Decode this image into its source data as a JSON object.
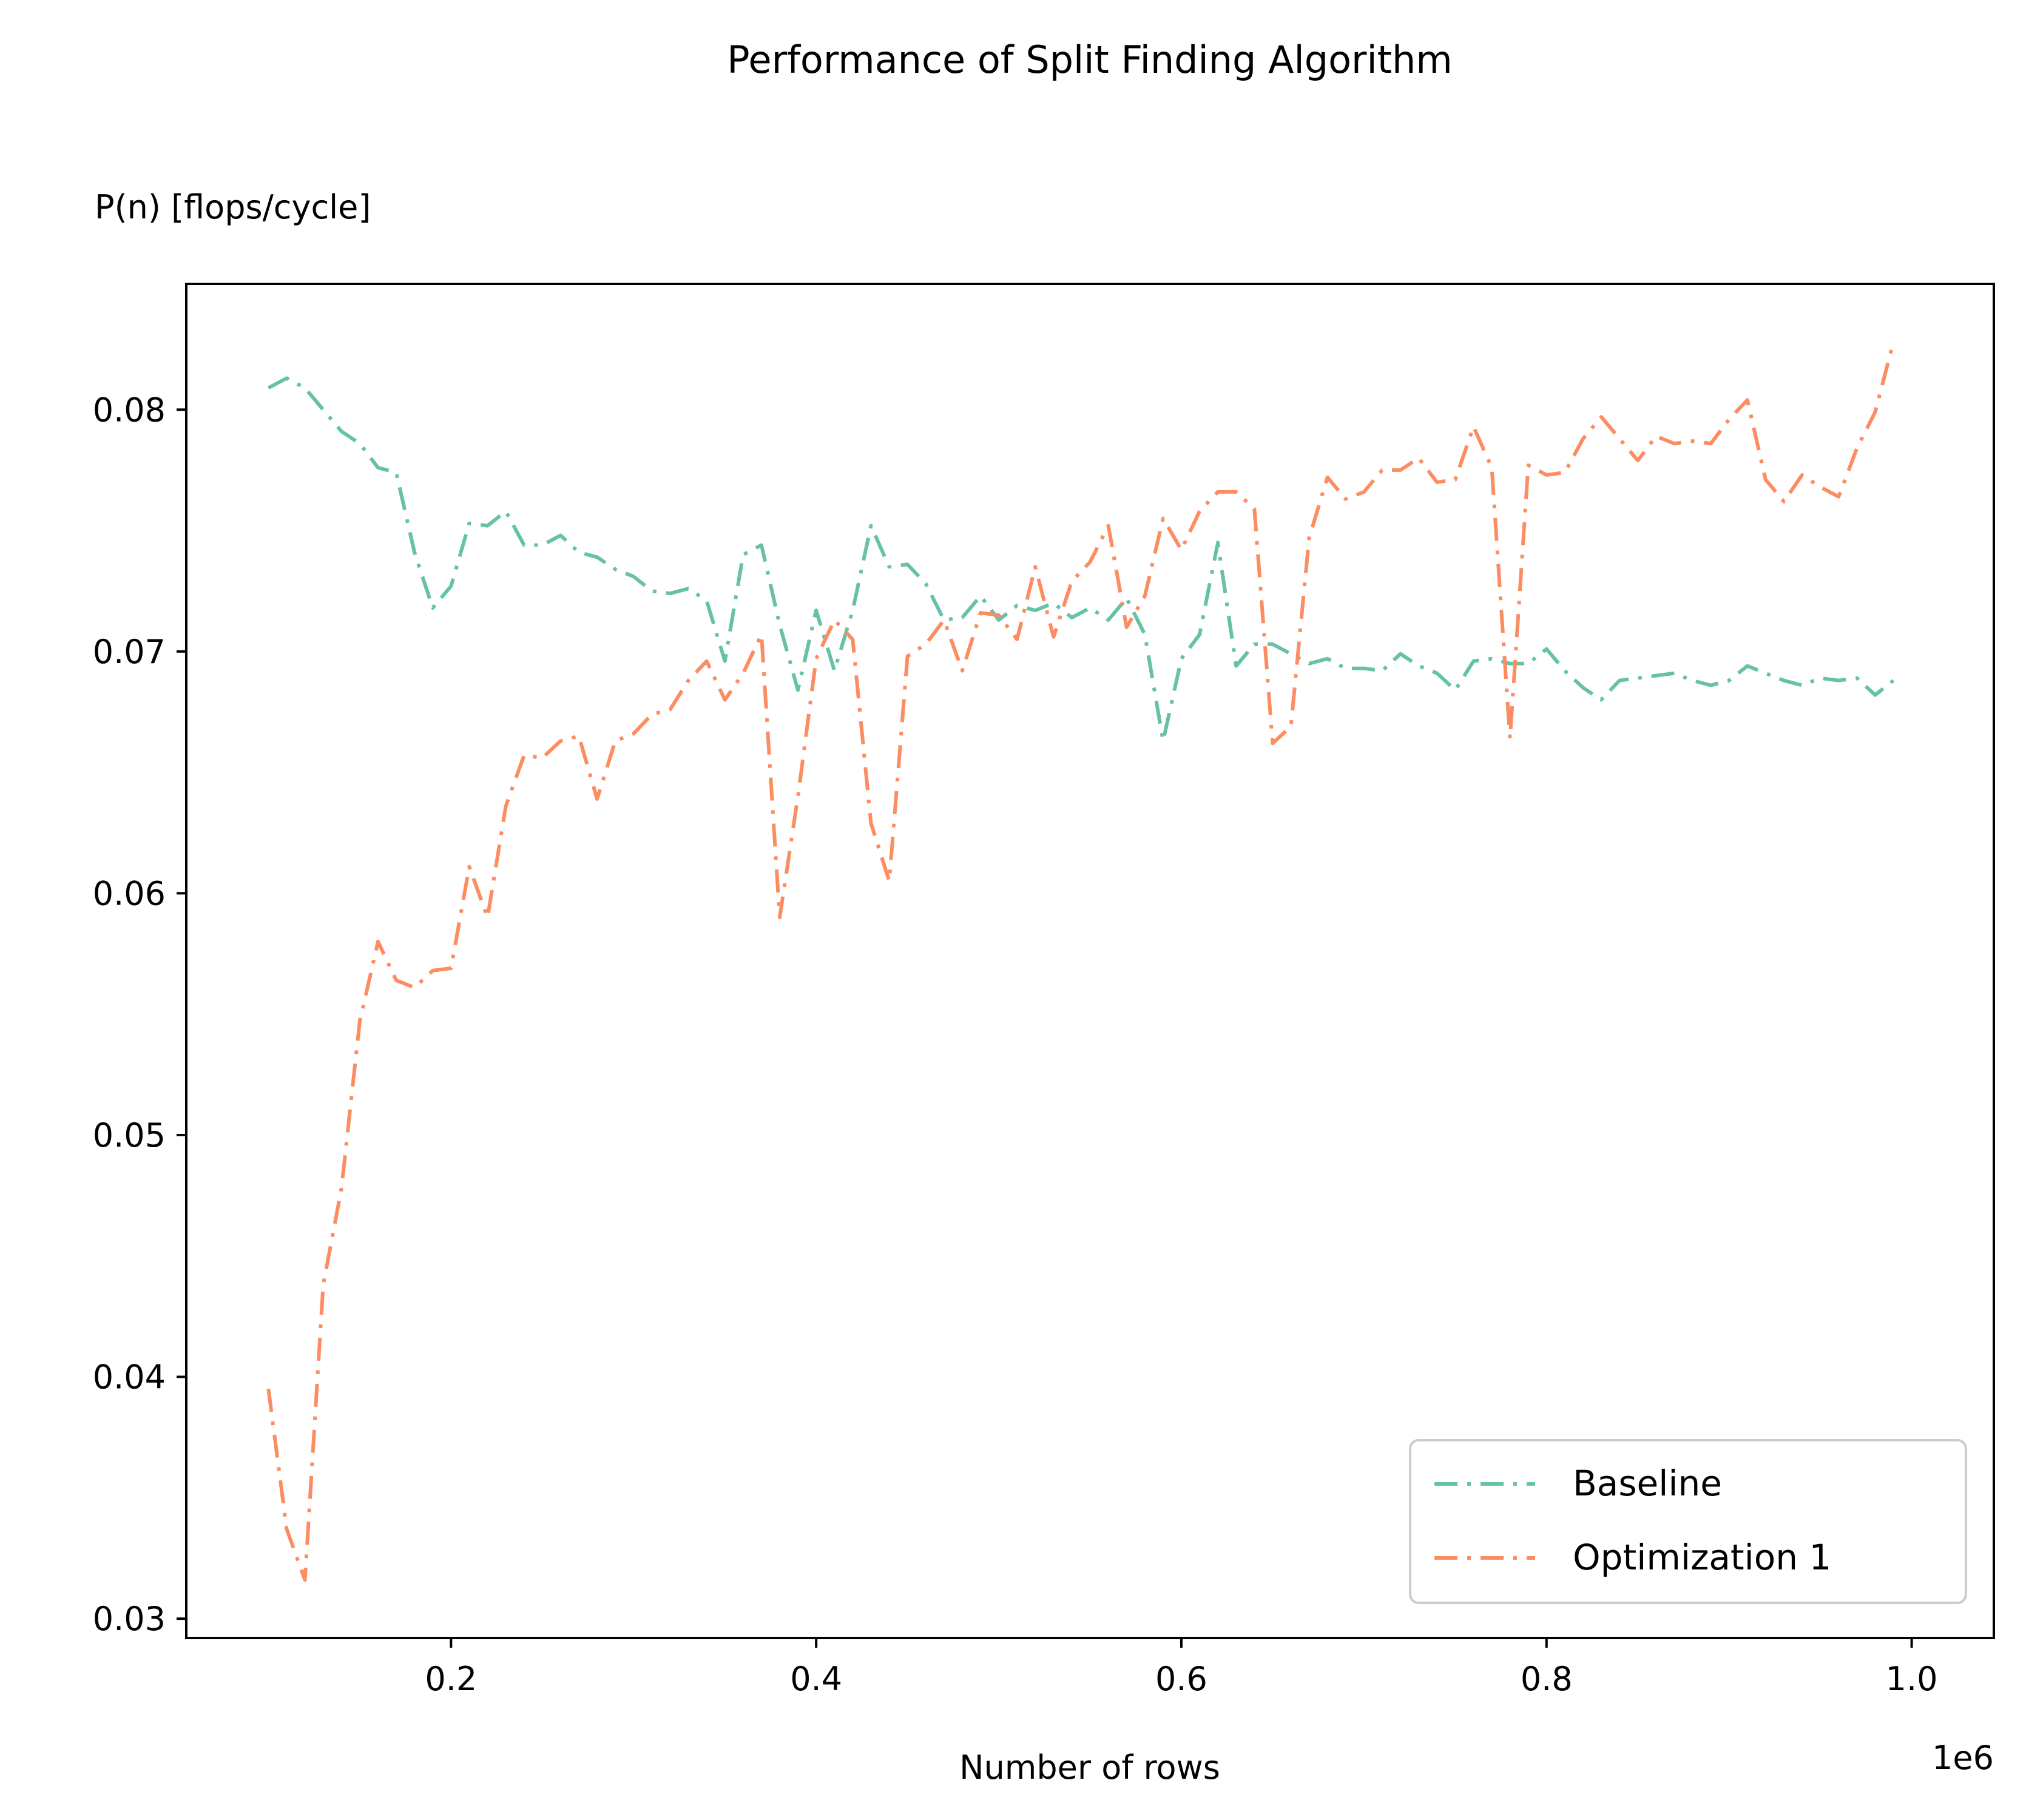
{
  "chart_data": {
    "type": "line",
    "title": "Performance of Split Finding Algorithm",
    "ylabel": "P(n) [flops/cycle]",
    "xlabel": "Number of rows",
    "x_offset_label": "1e6",
    "xlim": [
      0.055,
      1.045
    ],
    "ylim": [
      0.0292,
      0.0852
    ],
    "x_ticks": [
      {
        "value": 0.2,
        "label": "0.2"
      },
      {
        "value": 0.4,
        "label": "0.4"
      },
      {
        "value": 0.6,
        "label": "0.6"
      },
      {
        "value": 0.8,
        "label": "0.8"
      },
      {
        "value": 1.0,
        "label": "1.0"
      }
    ],
    "y_ticks": [
      {
        "value": 0.03,
        "label": "0.03"
      },
      {
        "value": 0.04,
        "label": "0.04"
      },
      {
        "value": 0.05,
        "label": "0.05"
      },
      {
        "value": 0.06,
        "label": "0.06"
      },
      {
        "value": 0.07,
        "label": "0.07"
      },
      {
        "value": 0.08,
        "label": "0.08"
      }
    ],
    "grid": false,
    "legend_position": "bottom-right",
    "x": [
      0.1,
      0.11,
      0.12,
      0.13,
      0.14,
      0.15,
      0.16,
      0.17,
      0.18,
      0.19,
      0.2,
      0.21,
      0.22,
      0.23,
      0.24,
      0.25,
      0.26,
      0.27,
      0.28,
      0.29,
      0.3,
      0.31,
      0.32,
      0.33,
      0.34,
      0.35,
      0.36,
      0.37,
      0.38,
      0.39,
      0.4,
      0.41,
      0.42,
      0.43,
      0.44,
      0.45,
      0.46,
      0.47,
      0.48,
      0.49,
      0.5,
      0.51,
      0.52,
      0.53,
      0.54,
      0.55,
      0.56,
      0.57,
      0.58,
      0.59,
      0.6,
      0.61,
      0.62,
      0.63,
      0.64,
      0.65,
      0.66,
      0.67,
      0.68,
      0.69,
      0.7,
      0.71,
      0.72,
      0.73,
      0.74,
      0.75,
      0.76,
      0.77,
      0.78,
      0.79,
      0.8,
      0.81,
      0.82,
      0.83,
      0.84,
      0.85,
      0.86,
      0.87,
      0.88,
      0.89,
      0.9,
      0.91,
      0.92,
      0.93,
      0.94,
      0.95,
      0.96,
      0.97,
      0.98,
      0.99
    ],
    "series": [
      {
        "name": "Baseline",
        "color": "#66c2a5",
        "dash": "dashdot",
        "values": [
          0.0809,
          0.0813,
          0.0809,
          0.08,
          0.0791,
          0.0786,
          0.0776,
          0.0774,
          0.0741,
          0.0718,
          0.0727,
          0.0753,
          0.0752,
          0.0758,
          0.0744,
          0.0744,
          0.0748,
          0.0741,
          0.0739,
          0.0734,
          0.0731,
          0.0725,
          0.0724,
          0.0726,
          0.0721,
          0.0696,
          0.074,
          0.0744,
          0.0711,
          0.0684,
          0.0717,
          0.0692,
          0.0717,
          0.0752,
          0.0735,
          0.0736,
          0.0728,
          0.0713,
          0.0714,
          0.0723,
          0.0713,
          0.0719,
          0.0717,
          0.072,
          0.0714,
          0.0718,
          0.0713,
          0.0722,
          0.0707,
          0.0663,
          0.0697,
          0.0707,
          0.0745,
          0.0694,
          0.0703,
          0.0703,
          0.0699,
          0.0695,
          0.0697,
          0.0693,
          0.0693,
          0.0692,
          0.0699,
          0.0694,
          0.0691,
          0.0684,
          0.0696,
          0.0697,
          0.0695,
          0.0695,
          0.0701,
          0.0692,
          0.0685,
          0.068,
          0.0688,
          0.0689,
          0.069,
          0.0691,
          0.0688,
          0.0686,
          0.0688,
          0.0694,
          0.0691,
          0.0688,
          0.0686,
          0.0689,
          0.0688,
          0.0689,
          0.0682,
          0.0688
        ]
      },
      {
        "name": "Optimization 1",
        "color": "#fc8d62",
        "dash": "dashdot",
        "values": [
          0.0395,
          0.0337,
          0.0316,
          0.0438,
          0.0478,
          0.0547,
          0.058,
          0.0564,
          0.0561,
          0.0568,
          0.0569,
          0.0611,
          0.059,
          0.0636,
          0.0657,
          0.0656,
          0.0663,
          0.0665,
          0.0639,
          0.0663,
          0.0666,
          0.0674,
          0.0676,
          0.0688,
          0.0696,
          0.068,
          0.0691,
          0.0707,
          0.059,
          0.064,
          0.0697,
          0.0713,
          0.0705,
          0.0629,
          0.0605,
          0.0698,
          0.0703,
          0.0713,
          0.0692,
          0.0716,
          0.0715,
          0.0705,
          0.0735,
          0.0706,
          0.0729,
          0.0737,
          0.0752,
          0.071,
          0.0723,
          0.0755,
          0.0742,
          0.0758,
          0.0766,
          0.0766,
          0.0759,
          0.0662,
          0.0669,
          0.0747,
          0.0772,
          0.0763,
          0.0766,
          0.0775,
          0.0775,
          0.078,
          0.077,
          0.0771,
          0.0793,
          0.0776,
          0.0664,
          0.0777,
          0.0773,
          0.0774,
          0.0788,
          0.0797,
          0.0788,
          0.0779,
          0.0789,
          0.0786,
          0.0787,
          0.0786,
          0.0796,
          0.0804,
          0.0771,
          0.0762,
          0.0773,
          0.0768,
          0.0764,
          0.0784,
          0.0799,
          0.0828
        ]
      }
    ]
  }
}
